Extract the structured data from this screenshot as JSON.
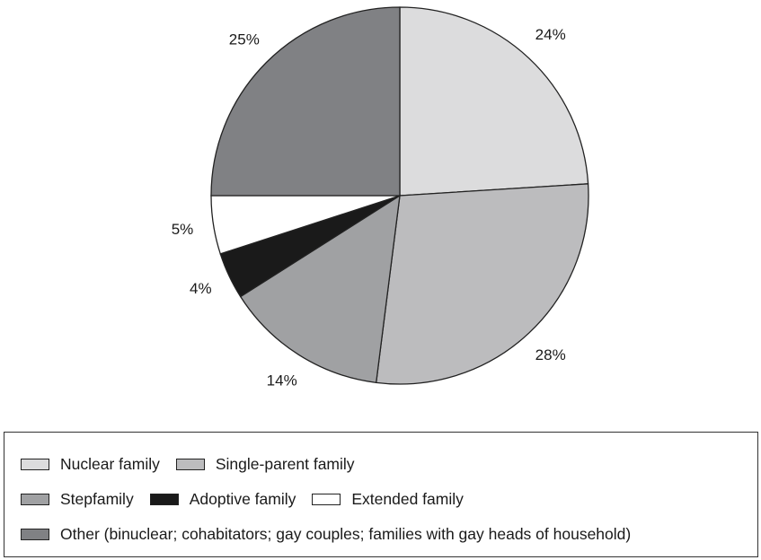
{
  "chart_data": {
    "type": "pie",
    "title": "",
    "slices": [
      {
        "label": "Nuclear family",
        "value": 24,
        "display": "24%",
        "color": "#dcdcdd"
      },
      {
        "label": "Single-parent family",
        "value": 28,
        "display": "28%",
        "color": "#bcbcbe"
      },
      {
        "label": "Stepfamily",
        "value": 14,
        "display": "14%",
        "color": "#a0a1a3"
      },
      {
        "label": "Adoptive family",
        "value": 4,
        "display": "4%",
        "color": "#1a1a1a"
      },
      {
        "label": "Extended family",
        "value": 5,
        "display": "5%",
        "color": "#ffffff"
      },
      {
        "label": "Other (binuclear; cohabitators; gay couples; families with gay heads of household)",
        "value": 25,
        "display": "25%",
        "color": "#808184"
      }
    ],
    "legend": {
      "rows": [
        [
          0,
          1
        ],
        [
          2,
          3,
          4
        ],
        [
          5
        ]
      ]
    }
  }
}
